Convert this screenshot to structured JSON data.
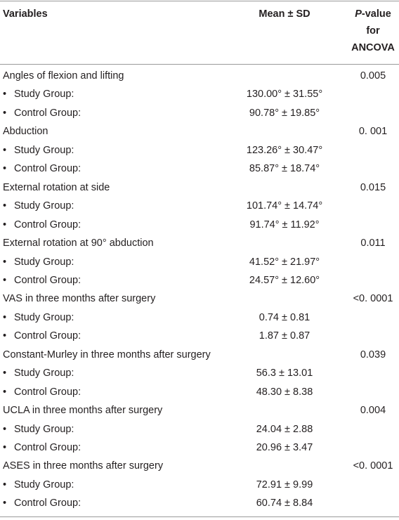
{
  "header": {
    "variables": "Variables",
    "mean_sd": "Mean ± SD",
    "p_value_italic": "P",
    "p_value_rest": "-value",
    "p_value_line2": "for",
    "p_value_line3": "ANCOVA"
  },
  "groups": [
    {
      "label": "Angles of flexion and lifting",
      "p_value": "0.005",
      "rows": [
        {
          "label": "Study Group:",
          "value": "130.00° ± 31.55°"
        },
        {
          "label": "Control Group:",
          "value": "90.78° ± 19.85°"
        }
      ]
    },
    {
      "label": "Abduction",
      "p_value": "0. 001",
      "rows": [
        {
          "label": "Study Group:",
          "value": "123.26° ± 30.47°"
        },
        {
          "label": "Control Group:",
          "value": "85.87° ± 18.74°"
        }
      ]
    },
    {
      "label": "External rotation at side",
      "p_value": "0.015",
      "rows": [
        {
          "label": "Study Group:",
          "value": "101.74° ± 14.74°"
        },
        {
          "label": "Control Group:",
          "value": "91.74° ± 11.92°"
        }
      ]
    },
    {
      "label": "External rotation at 90° abduction",
      "p_value": "0.011",
      "rows": [
        {
          "label": "Study Group:",
          "value": "41.52° ± 21.97°"
        },
        {
          "label": "Control Group:",
          "value": "24.57° ± 12.60°"
        }
      ]
    },
    {
      "label": "VAS in three months after surgery",
      "p_value": "<0. 0001",
      "rows": [
        {
          "label": "Study Group:",
          "value": "0.74 ± 0.81"
        },
        {
          "label": "Control Group:",
          "value": "1.87 ± 0.87"
        }
      ]
    },
    {
      "label": "Constant-Murley in three months after surgery",
      "p_value": "0.039",
      "rows": [
        {
          "label": "Study Group:",
          "value": "56.3 ± 13.01"
        },
        {
          "label": "Control Group:",
          "value": "48.30 ± 8.38"
        }
      ]
    },
    {
      "label": "UCLA in three months after surgery",
      "p_value": "0.004",
      "rows": [
        {
          "label": "Study Group:",
          "value": "24.04 ± 2.88"
        },
        {
          "label": "Control Group:",
          "value": "20.96 ± 3.47"
        }
      ]
    },
    {
      "label": "ASES in three months after surgery",
      "p_value": "<0. 0001",
      "rows": [
        {
          "label": "Study Group:",
          "value": "72.91 ± 9.99"
        },
        {
          "label": "Control Group:",
          "value": "60.74 ± 8.84"
        }
      ]
    }
  ]
}
